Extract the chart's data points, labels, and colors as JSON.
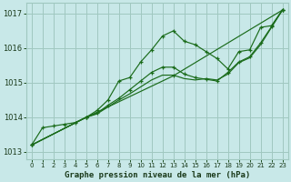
{
  "title": "Graphe pression niveau de la mer (hPa)",
  "bg_color": "#c8e8e8",
  "grid_color": "#a0c8c0",
  "line_color": "#1a6b1a",
  "xlim": [
    -0.5,
    23.5
  ],
  "ylim": [
    1012.8,
    1017.3
  ],
  "xticks": [
    0,
    1,
    2,
    3,
    4,
    5,
    6,
    7,
    8,
    9,
    10,
    11,
    12,
    13,
    14,
    15,
    16,
    17,
    18,
    19,
    20,
    21,
    22,
    23
  ],
  "yticks": [
    1013,
    1014,
    1015,
    1016,
    1017
  ],
  "series": [
    {
      "x": [
        0,
        1,
        2,
        3,
        4,
        5,
        6,
        7,
        8,
        9,
        10,
        11,
        12,
        13,
        14,
        15,
        16,
        17,
        18,
        19,
        20,
        21,
        22,
        23
      ],
      "y": [
        1013.2,
        1013.7,
        1013.75,
        1013.8,
        1013.85,
        1014.0,
        1014.2,
        1014.5,
        1015.05,
        1015.15,
        1015.6,
        1015.95,
        1016.35,
        1016.5,
        1016.2,
        1016.1,
        1015.9,
        1015.7,
        1015.4,
        1015.9,
        1015.95,
        1016.6,
        1016.65,
        1017.1
      ],
      "marker": true
    },
    {
      "x": [
        0,
        5,
        6,
        7,
        8,
        9,
        10,
        11,
        12,
        13,
        14,
        15,
        16,
        17,
        18,
        19,
        20,
        21,
        22,
        23
      ],
      "y": [
        1013.2,
        1014.0,
        1014.12,
        1014.35,
        1014.55,
        1014.8,
        1015.05,
        1015.3,
        1015.45,
        1015.45,
        1015.25,
        1015.15,
        1015.1,
        1015.05,
        1015.3,
        1015.6,
        1015.75,
        1016.15,
        1016.62,
        1017.1
      ],
      "marker": true
    },
    {
      "x": [
        0,
        5,
        6,
        7,
        8,
        9,
        10,
        11,
        12,
        13,
        14,
        15,
        16,
        17,
        18,
        19,
        20,
        21,
        22,
        23
      ],
      "y": [
        1013.2,
        1014.0,
        1014.1,
        1014.3,
        1014.5,
        1014.68,
        1014.88,
        1015.08,
        1015.22,
        1015.22,
        1015.12,
        1015.08,
        1015.12,
        1015.08,
        1015.25,
        1015.58,
        1015.72,
        1016.1,
        1016.6,
        1017.1
      ],
      "marker": false
    },
    {
      "x": [
        0,
        5,
        13,
        23
      ],
      "y": [
        1013.2,
        1014.0,
        1015.2,
        1017.1
      ],
      "marker": true
    }
  ]
}
